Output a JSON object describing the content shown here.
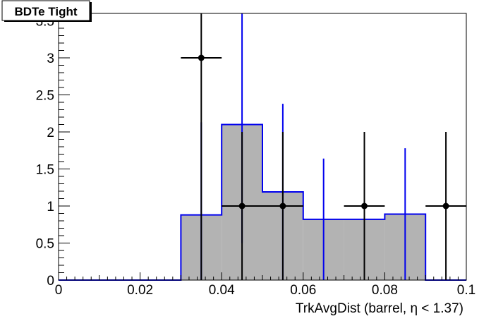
{
  "chart_data": {
    "type": "bar",
    "title": "BDTe Tight",
    "xlabel": "TrkAvgDist (barrel,  η < 1.37)",
    "ylabel": "",
    "xlim": [
      0,
      0.1
    ],
    "ylim": [
      0,
      3.6
    ],
    "grid": false,
    "x_ticks": [
      0,
      0.02,
      0.04,
      0.06,
      0.08,
      0.1
    ],
    "x_tick_labels": [
      "0",
      "0.02",
      "0.04",
      "0.06",
      "0.08",
      "0.1"
    ],
    "y_ticks": [
      0,
      0.5,
      1,
      1.5,
      2,
      2.5,
      3,
      3.5
    ],
    "y_tick_labels": [
      "0",
      "0.5",
      "1",
      "1.5",
      "2",
      "2.5",
      "3",
      "3.5"
    ],
    "bin_edges": [
      0,
      0.01,
      0.02,
      0.03,
      0.04,
      0.05,
      0.06,
      0.07,
      0.08,
      0.09,
      0.1
    ],
    "colors": {
      "histogram_fill": "#b3b3b3",
      "histogram_line": "#0000ee",
      "data": "#000000"
    },
    "series": [
      {
        "kind": "histogram",
        "values": [
          0,
          0,
          0,
          0.88,
          2.1,
          1.19,
          0.82,
          0.82,
          0.89,
          0
        ],
        "errors": [
          0,
          0,
          0,
          1.25,
          1.6,
          1.19,
          0.82,
          0.82,
          0.89,
          0
        ]
      },
      {
        "kind": "points",
        "x": [
          0.035,
          0.045,
          0.055,
          0.075,
          0.095
        ],
        "y": [
          3,
          1,
          1,
          1,
          1
        ],
        "x_err": [
          0.005,
          0.005,
          0.005,
          0.005,
          0.005
        ],
        "y_err_up": [
          0.6,
          1,
          1,
          1,
          1
        ],
        "y_err_down": [
          3,
          1,
          1,
          1,
          1
        ]
      }
    ]
  }
}
